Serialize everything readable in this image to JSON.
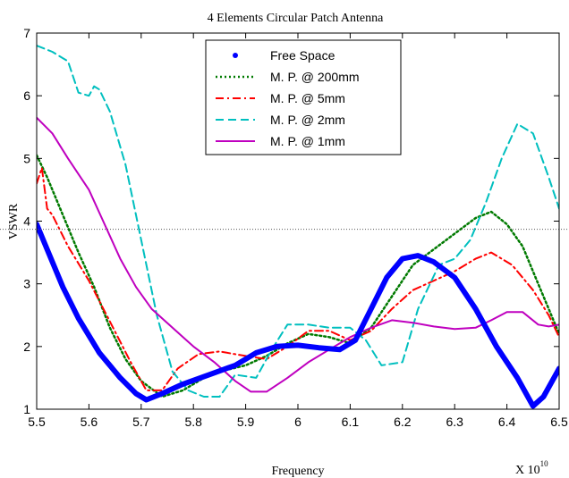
{
  "chart_data": {
    "type": "line",
    "title": "4 Elements Circular Patch Antenna",
    "xlabel": "Frequency",
    "ylabel": "VSWR",
    "x_multiplier_label": "X 10",
    "x_multiplier_exponent": "10",
    "xlim": [
      5.5,
      6.5
    ],
    "ylim": [
      1,
      7
    ],
    "xticks": [
      5.5,
      5.6,
      5.7,
      5.8,
      5.9,
      6.0,
      6.1,
      6.2,
      6.3,
      6.4,
      6.5
    ],
    "xtick_labels": [
      "5.5",
      "5.6",
      "5.7",
      "5.8",
      "5.9",
      "6",
      "6.1",
      "6.2",
      "6.3",
      "6.4",
      "6.5"
    ],
    "yticks": [
      1,
      2,
      3,
      4,
      5,
      6,
      7
    ],
    "ytick_labels": [
      "1",
      "2",
      "3",
      "4",
      "5",
      "6",
      "7"
    ],
    "grid": false,
    "legend_position": "top-center",
    "reference_line": {
      "y": 3.87,
      "style": "dotted",
      "color": "#555555"
    },
    "series": [
      {
        "name": "Free Space",
        "color": "#0000ff",
        "style": "thick-dots",
        "x": [
          5.5,
          5.52,
          5.55,
          5.58,
          5.62,
          5.66,
          5.69,
          5.71,
          5.74,
          5.78,
          5.83,
          5.88,
          5.92,
          5.96,
          6.0,
          6.04,
          6.08,
          6.11,
          6.14,
          6.17,
          6.2,
          6.23,
          6.26,
          6.3,
          6.34,
          6.38,
          6.42,
          6.45,
          6.47,
          6.5
        ],
        "y": [
          3.95,
          3.55,
          2.95,
          2.45,
          1.9,
          1.5,
          1.25,
          1.15,
          1.25,
          1.4,
          1.55,
          1.7,
          1.9,
          2.0,
          2.02,
          1.98,
          1.95,
          2.1,
          2.6,
          3.1,
          3.4,
          3.45,
          3.35,
          3.1,
          2.6,
          2.0,
          1.5,
          1.05,
          1.2,
          1.65
        ]
      },
      {
        "name": "M. P. @ 200mm",
        "color": "#007a00",
        "style": "dotted",
        "x": [
          5.5,
          5.52,
          5.55,
          5.58,
          5.61,
          5.64,
          5.67,
          5.7,
          5.74,
          5.78,
          5.82,
          5.86,
          5.9,
          5.94,
          5.98,
          6.02,
          6.06,
          6.1,
          6.14,
          6.18,
          6.22,
          6.26,
          6.3,
          6.34,
          6.37,
          6.4,
          6.43,
          6.46,
          6.48,
          6.5
        ],
        "y": [
          5.05,
          4.7,
          4.1,
          3.5,
          2.95,
          2.3,
          1.8,
          1.45,
          1.2,
          1.3,
          1.5,
          1.62,
          1.7,
          1.85,
          2.05,
          2.2,
          2.15,
          2.05,
          2.3,
          2.8,
          3.3,
          3.55,
          3.8,
          4.05,
          4.15,
          3.95,
          3.6,
          3.0,
          2.6,
          2.2
        ]
      },
      {
        "name": "M. P. @ 5mm",
        "color": "#ff0000",
        "style": "dash-dot",
        "x": [
          5.5,
          5.51,
          5.52,
          5.53,
          5.56,
          5.6,
          5.64,
          5.68,
          5.71,
          5.74,
          5.77,
          5.81,
          5.85,
          5.9,
          5.94,
          5.98,
          6.02,
          6.06,
          6.1,
          6.14,
          6.18,
          6.22,
          6.26,
          6.3,
          6.34,
          6.37,
          6.41,
          6.45,
          6.48,
          6.5
        ],
        "y": [
          4.6,
          4.85,
          4.2,
          4.1,
          3.6,
          3.05,
          2.4,
          1.75,
          1.3,
          1.3,
          1.65,
          1.88,
          1.92,
          1.85,
          1.8,
          2.0,
          2.25,
          2.25,
          2.1,
          2.25,
          2.6,
          2.9,
          3.05,
          3.2,
          3.4,
          3.5,
          3.3,
          2.9,
          2.5,
          2.15
        ]
      },
      {
        "name": "M. P. @ 2mm",
        "color": "#00bfbf",
        "style": "dashed",
        "x": [
          5.5,
          5.53,
          5.55,
          5.56,
          5.58,
          5.6,
          5.61,
          5.62,
          5.64,
          5.67,
          5.7,
          5.73,
          5.76,
          5.79,
          5.82,
          5.85,
          5.88,
          5.92,
          5.95,
          5.98,
          6.02,
          6.06,
          6.1,
          6.13,
          6.16,
          6.2,
          6.23,
          6.27,
          6.3,
          6.33,
          6.36,
          6.39,
          6.42,
          6.45,
          6.48,
          6.5
        ],
        "y": [
          6.8,
          6.7,
          6.6,
          6.55,
          6.05,
          6.0,
          6.15,
          6.1,
          5.75,
          4.9,
          3.7,
          2.5,
          1.6,
          1.3,
          1.2,
          1.2,
          1.55,
          1.5,
          1.95,
          2.35,
          2.35,
          2.3,
          2.3,
          2.1,
          1.7,
          1.75,
          2.6,
          3.3,
          3.4,
          3.7,
          4.3,
          5.0,
          5.55,
          5.4,
          4.7,
          4.2
        ]
      },
      {
        "name": "M. P. @ 1mm",
        "color": "#bf00bf",
        "style": "solid",
        "x": [
          5.5,
          5.53,
          5.56,
          5.6,
          5.63,
          5.66,
          5.69,
          5.72,
          5.76,
          5.8,
          5.84,
          5.88,
          5.91,
          5.94,
          5.98,
          6.02,
          6.06,
          6.1,
          6.14,
          6.18,
          6.22,
          6.26,
          6.3,
          6.34,
          6.37,
          6.4,
          6.43,
          6.46,
          6.48,
          6.5
        ],
        "y": [
          5.65,
          5.4,
          5.0,
          4.5,
          3.95,
          3.4,
          2.95,
          2.6,
          2.3,
          2.0,
          1.75,
          1.45,
          1.28,
          1.28,
          1.5,
          1.75,
          1.95,
          2.15,
          2.3,
          2.42,
          2.38,
          2.32,
          2.28,
          2.3,
          2.42,
          2.55,
          2.55,
          2.35,
          2.32,
          2.35
        ]
      }
    ]
  }
}
